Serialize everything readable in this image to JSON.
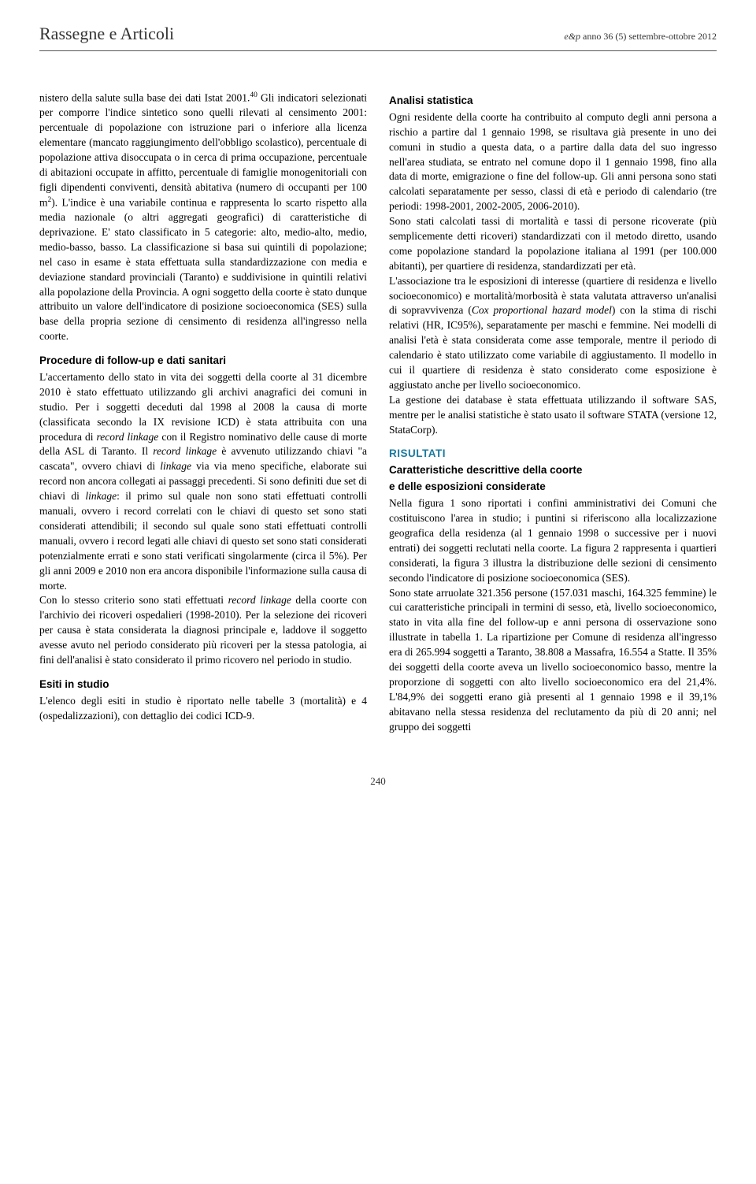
{
  "header": {
    "section_title": "Rassegne e Articoli",
    "journal_mark": "e&p",
    "issue_info": "anno 36 (5) settembre-ottobre 2012"
  },
  "left_column": {
    "para1_html": "nistero della salute sulla base dei dati Istat 2001.<sup>40</sup> Gli indicatori selezionati per comporre l'indice sintetico sono quelli rilevati al censimento 2001: percentuale di popolazione con istruzione pari o inferiore alla licenza elementare (mancato raggiungimento dell'obbligo scolastico), percentuale di popolazione attiva disoccupata o in cerca di prima occupazione, percentuale di abitazioni occupate in affitto, percentuale di famiglie monogenitoriali con figli dipendenti conviventi, densità abitativa (numero di occupanti per 100 m<sup>2</sup>). L'indice è una variabile continua e rappresenta lo scarto rispetto alla media nazionale (o altri aggregati geografici) di caratteristiche di deprivazione. E' stato classificato in 5 categorie: alto, medio-alto, medio, medio-basso, basso. La classificazione si basa sui quintili di popolazione; nel caso in esame è stata effettuata sulla standardizzazione con media e deviazione standard provinciali (Taranto) e suddivisione in quintili relativi alla popolazione della Provincia. A ogni soggetto della coorte è stato dunque attribuito un valore dell'indicatore di posizione socioeconomica (SES) sulla base della propria sezione di censimento di residenza all'ingresso nella coorte.",
    "heading1": "Procedure di follow-up e dati sanitari",
    "para2_html": "L'accertamento dello stato in vita dei soggetti della coorte al 31 dicembre 2010 è stato effettuato utilizzando gli archivi anagrafici dei comuni in studio. Per i soggetti deceduti dal 1998 al 2008 la causa di morte (classificata secondo la IX revisione ICD) è stata attribuita con una procedura di <em>record linkage</em> con il Registro nominativo delle cause di morte della ASL di Taranto. Il <em>record linkage</em> è avvenuto utilizzando chiavi \"a cascata\", ovvero chiavi di <em>linkage</em> via via meno specifiche, elaborate sui record non ancora collegati ai passaggi precedenti. Si sono definiti due set di chiavi di <em>linkage</em>: il primo sul quale non sono stati effettuati controlli manuali, ovvero i record correlati con le chiavi di questo set sono stati considerati attendibili; il secondo sul quale sono stati effettuati controlli manuali, ovvero i record legati alle chiavi di questo set sono stati considerati potenzialmente errati e sono stati verificati singolarmente (circa il 5%). Per gli anni 2009 e 2010 non era ancora disponibile l'informazione sulla causa di morte.",
    "para3_html": "Con lo stesso criterio sono stati effettuati <em>record linkage</em> della coorte con l'archivio dei ricoveri ospedalieri (1998-2010). Per la selezione dei ricoveri per causa è stata considerata la diagnosi principale e, laddove il soggetto avesse avuto nel periodo considerato più ricoveri per la stessa patologia, ai fini dell'analisi è stato considerato il primo ricovero nel periodo in studio.",
    "heading2": "Esiti in studio",
    "para4": "L'elenco degli esiti in studio è riportato nelle tabelle 3 (mortalità) e 4 (ospedalizzazioni), con dettaglio dei codici ICD-9."
  },
  "right_column": {
    "heading1": "Analisi statistica",
    "para1": "Ogni residente della coorte ha contribuito al computo degli anni persona a rischio a partire dal 1 gennaio 1998, se risultava già presente in uno dei comuni in studio a questa data, o a partire dalla data del suo ingresso nell'area studiata, se entrato nel comune dopo il 1 gennaio 1998, fino alla data di morte, emigrazione o fine del follow-up. Gli anni persona sono stati calcolati separatamente per sesso, classi di età e periodo di calendario (tre periodi: 1998-2001, 2002-2005, 2006-2010).",
    "para2": "Sono stati calcolati tassi di mortalità e tassi di persone ricoverate (più semplicemente detti ricoveri) standardizzati con il metodo diretto, usando come popolazione standard la popolazione italiana al 1991 (per 100.000 abitanti), per quartiere di residenza, standardizzati per età.",
    "para3_html": "L'associazione tra le esposizioni di interesse (quartiere di residenza e livello socioeconomico) e mortalità/morbosità è stata valutata attraverso un'analisi di sopravvivenza (<em>Cox proportional hazard model</em>) con la stima di rischi relativi (HR, IC95%), separatamente per maschi e femmine. Nei modelli di analisi l'età è stata considerata come asse temporale, mentre il periodo di calendario è stato utilizzato come variabile di aggiustamento. Il modello in cui il quartiere di residenza è stato considerato come esposizione è aggiustato anche per livello socioeconomico.",
    "para4": "La gestione dei database è stata effettuata utilizzando il software SAS, mentre per le analisi statistiche è stato usato il software STATA (versione 12, StataCorp).",
    "heading_main": "RISULTATI",
    "heading_sub1": "Caratteristiche descrittive della coorte",
    "heading_sub2": "e delle esposizioni considerate",
    "para5": "Nella figura 1 sono riportati i confini amministrativi dei Comuni che costituiscono l'area in studio; i puntini si riferiscono alla localizzazione geografica della residenza (al 1 gennaio 1998 o successive per i nuovi entrati) dei soggetti reclutati nella coorte. La figura 2 rappresenta i quartieri considerati, la figura 3 illustra la distribuzione delle sezioni di censimento secondo l'indicatore di posizione socioeconomica (SES).",
    "para6": "Sono state arruolate 321.356 persone (157.031 maschi, 164.325 femmine) le cui caratteristiche principali in termini di sesso, età, livello socioeconomico, stato in vita alla fine del follow-up e anni persona di osservazione sono illustrate in tabella 1. La ripartizione per Comune di residenza all'ingresso era di 265.994 soggetti a Taranto, 38.808 a Massafra, 16.554 a Statte. Il 35% dei soggetti della coorte aveva un livello socioeconomico basso, mentre la proporzione di soggetti con alto livello socioeconomico era del 21,4%. L'84,9% dei soggetti erano già presenti al 1 gennaio 1998 e il 39,1% abitavano nella stessa residenza del reclutamento da più di 20 anni; nel gruppo dei soggetti"
  },
  "page_number": "240"
}
